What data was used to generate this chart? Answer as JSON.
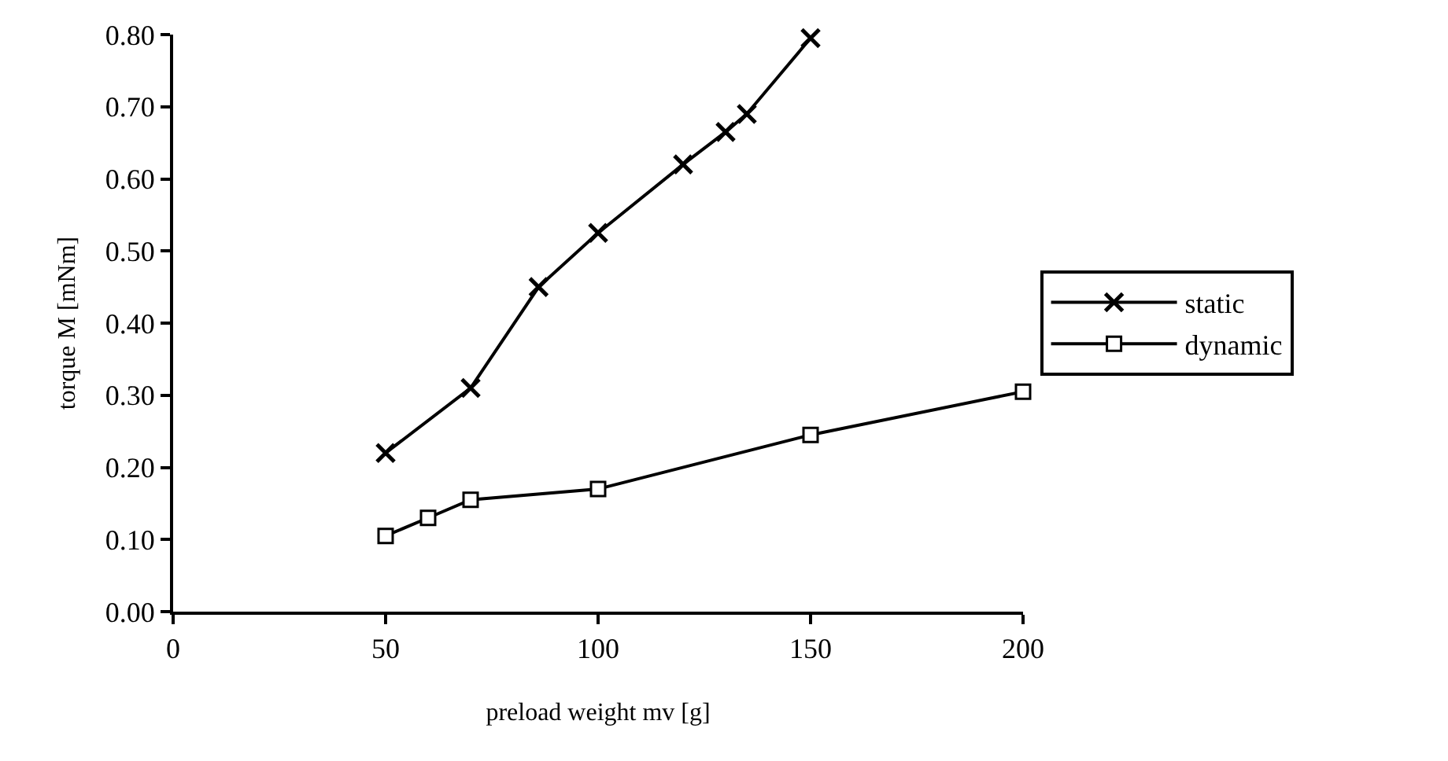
{
  "chart_data": {
    "type": "line",
    "xlabel": "preload weight mv [g]",
    "ylabel": "torque M [mNm]",
    "xlim": [
      0,
      200
    ],
    "xticks": [
      0,
      50,
      100,
      150,
      200
    ],
    "ylim": [
      0,
      0.8
    ],
    "yticks": [
      {
        "value": 0,
        "label": "0.00"
      },
      {
        "value": 0.1,
        "label": "0.10"
      },
      {
        "value": 0.2,
        "label": "0.20"
      },
      {
        "value": 0.3,
        "label": "0.30"
      },
      {
        "value": 0.4,
        "label": "0.40"
      },
      {
        "value": 0.5,
        "label": "0.50"
      },
      {
        "value": 0.6,
        "label": "0.60"
      },
      {
        "value": 0.7,
        "label": "0.70"
      },
      {
        "value": 0.8,
        "label": "0.80"
      }
    ],
    "legend": "right",
    "line_style": "solid",
    "series": [
      {
        "name": "static",
        "color": "#000000",
        "marker": "cross",
        "x": [
          50,
          70,
          86,
          100,
          120,
          130,
          135,
          150
        ],
        "values": [
          0.22,
          0.31,
          0.45,
          0.525,
          0.62,
          0.665,
          0.69,
          0.795
        ]
      },
      {
        "name": "dynamic",
        "color": "#000000",
        "marker": "square",
        "x": [
          50,
          60,
          70,
          100,
          150,
          200
        ],
        "values": [
          0.105,
          0.13,
          0.155,
          0.17,
          0.245,
          0.305
        ]
      }
    ]
  }
}
